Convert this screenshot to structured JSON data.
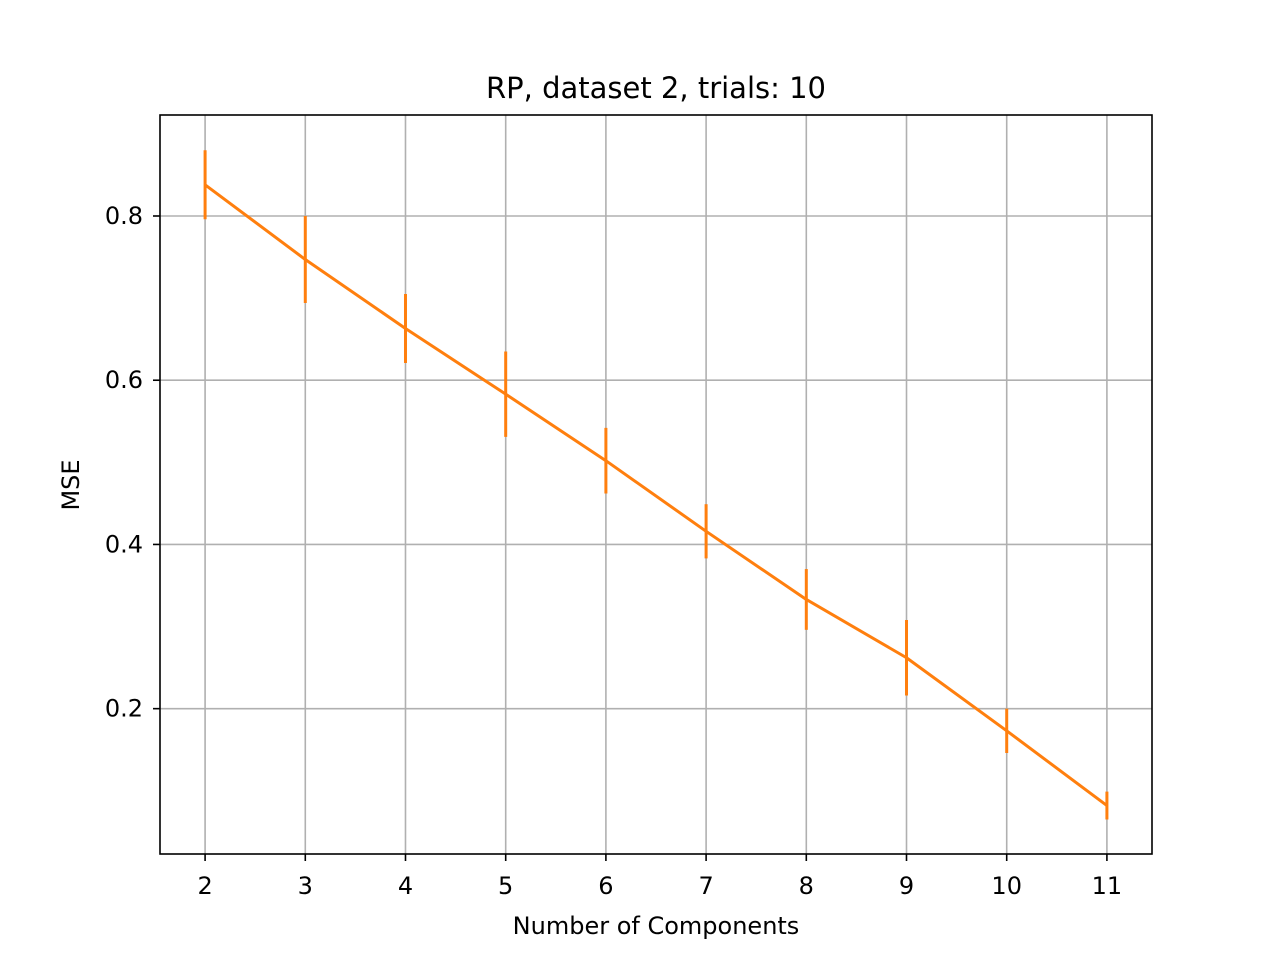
{
  "chart_data": {
    "type": "line",
    "title": "RP, dataset 2, trials: 10",
    "xlabel": "Number of Components",
    "ylabel": "MSE",
    "x": [
      2,
      3,
      4,
      5,
      6,
      7,
      8,
      9,
      10,
      11
    ],
    "x_tick_labels": [
      "2",
      "3",
      "4",
      "5",
      "6",
      "7",
      "8",
      "9",
      "10",
      "11"
    ],
    "y_ticks": [
      0.2,
      0.4,
      0.6,
      0.8
    ],
    "y_tick_labels": [
      "0.2",
      "0.4",
      "0.6",
      "0.8"
    ],
    "xlim": [
      1.55,
      11.45
    ],
    "ylim": [
      0.023,
      0.923
    ],
    "grid": true,
    "series": [
      {
        "values": [
          0.838,
          0.747,
          0.663,
          0.583,
          0.502,
          0.416,
          0.333,
          0.262,
          0.173,
          0.082
        ],
        "errors": [
          0.042,
          0.053,
          0.042,
          0.052,
          0.04,
          0.033,
          0.037,
          0.046,
          0.027,
          0.017
        ],
        "color": "#ff7f0e"
      }
    ]
  }
}
